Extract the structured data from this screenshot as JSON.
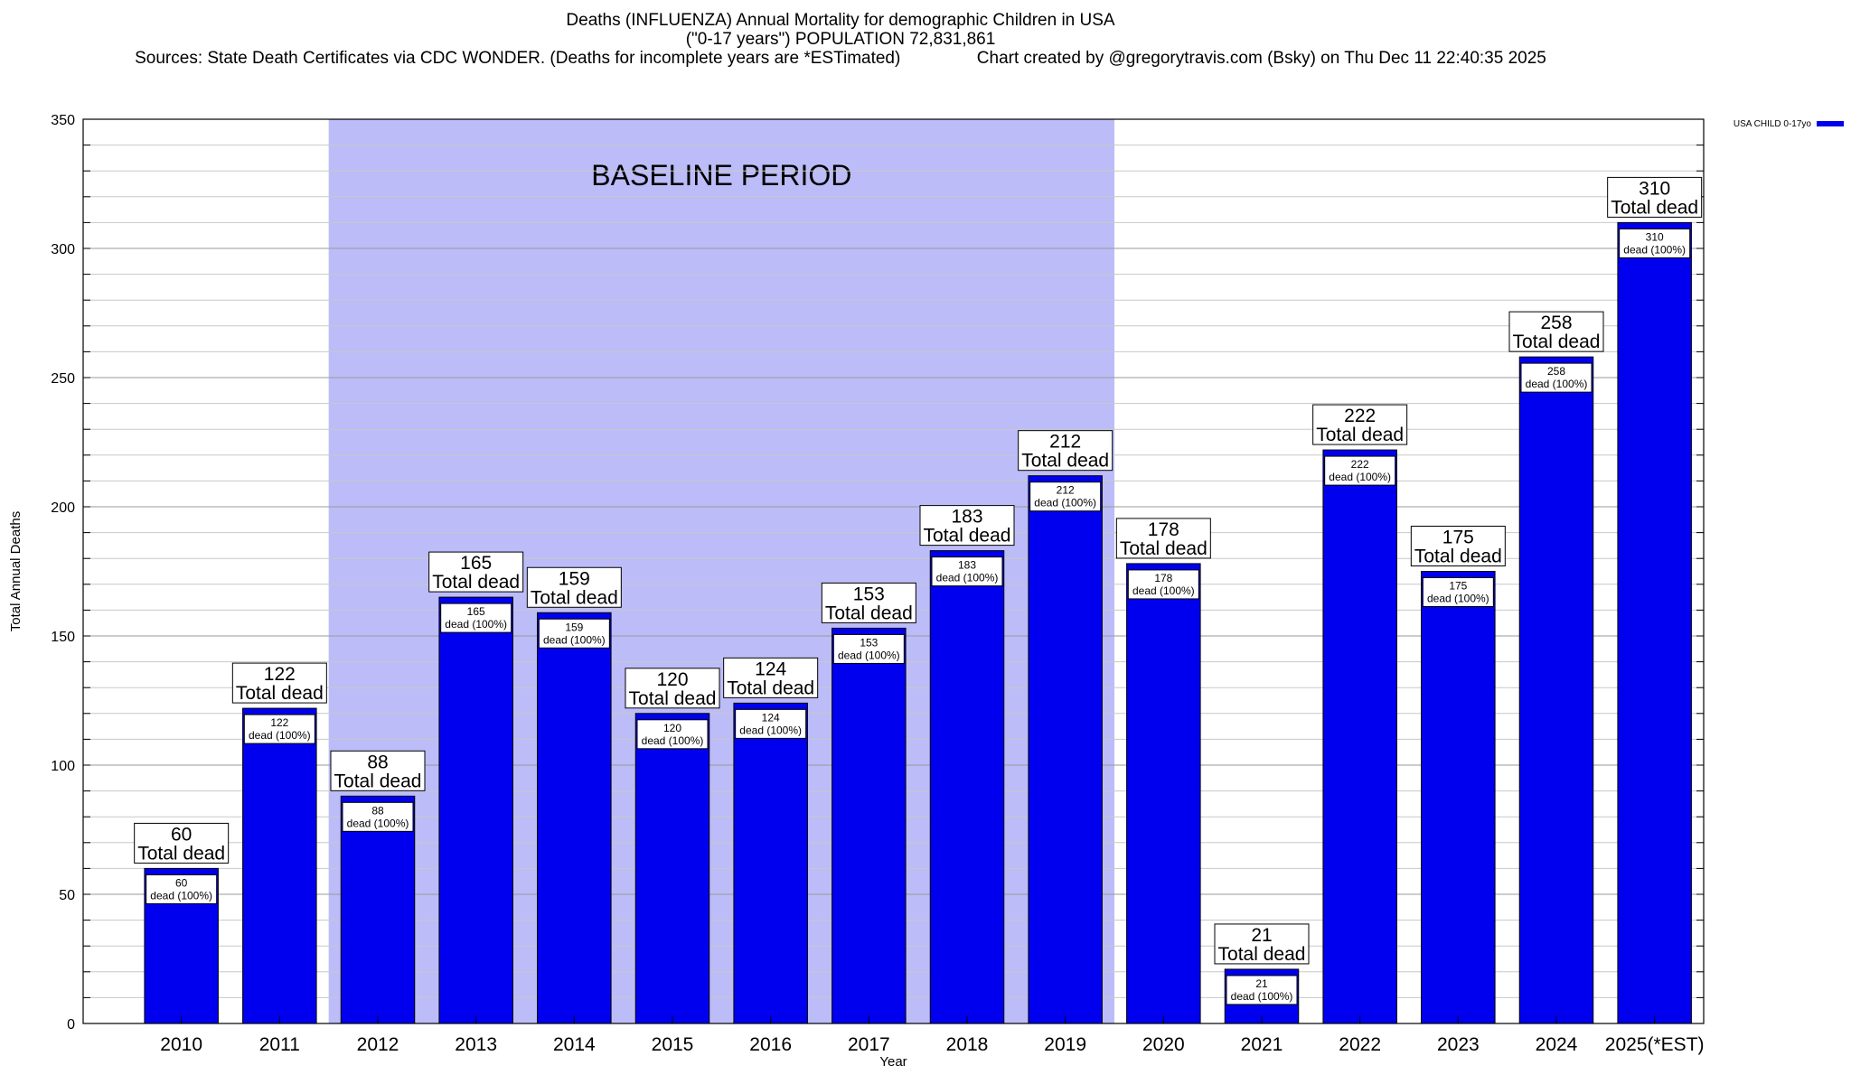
{
  "chart_data": {
    "type": "bar",
    "title": [
      "Deaths (INFLUENZA) Annual Mortality for demographic Children in USA",
      "(\"0-17 years\") POPULATION 72,831,861",
      "Sources: State Death Certificates via CDC WONDER. (Deaths for incomplete years are *ESTimated)                Chart created by @gregorytravis.com (Bsky) on Thu Dec 11 22:40:35 2025"
    ],
    "xlabel": "Year",
    "ylabel": "Total Annual Deaths",
    "ylim": [
      0,
      350
    ],
    "yticks": [
      0,
      50,
      100,
      150,
      200,
      250,
      300,
      350
    ],
    "categories": [
      "2010",
      "2011",
      "2012",
      "2013",
      "2014",
      "2015",
      "2016",
      "2017",
      "2018",
      "2019",
      "2020",
      "2021",
      "2022",
      "2023",
      "2024",
      "2025(*EST)"
    ],
    "series": [
      {
        "name": "USA CHILD 0-17yo",
        "color": "#0000ee",
        "values": [
          60,
          122,
          88,
          165,
          159,
          120,
          124,
          153,
          183,
          212,
          178,
          21,
          222,
          175,
          258,
          310
        ]
      }
    ],
    "total_label_suffix": "Total dead",
    "inner_label_suffix": "dead (100%)",
    "baseline_period": {
      "label": "BASELINE PERIOD",
      "from_category": "2012",
      "to_category": "2019",
      "color": "#bcbcf8"
    },
    "grid": true,
    "legend_position": "top-right"
  }
}
